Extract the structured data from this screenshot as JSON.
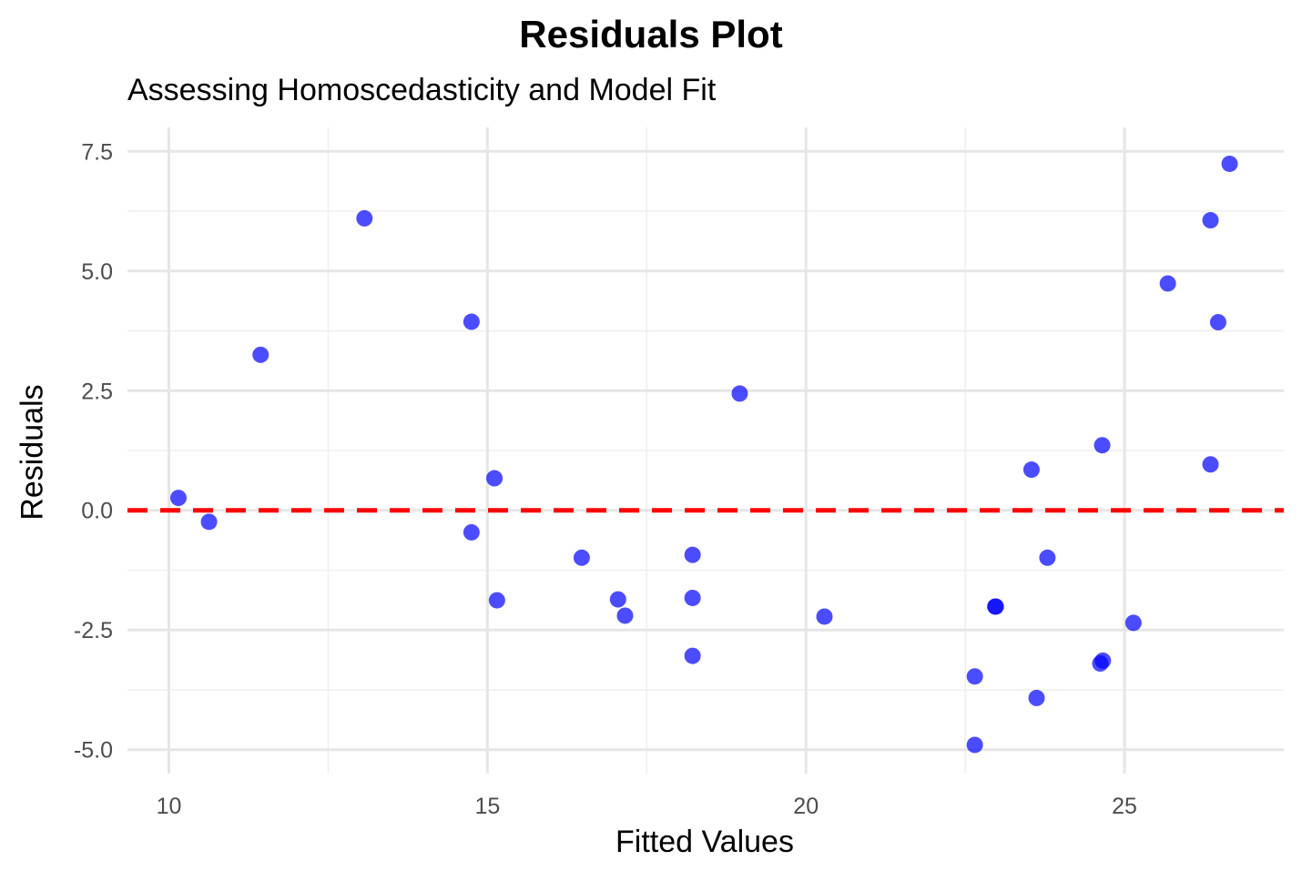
{
  "chart_data": {
    "type": "scatter",
    "title": "Residuals Plot",
    "subtitle": "Assessing Homoscedasticity and Model Fit",
    "xlabel": "Fitted Values",
    "ylabel": "Residuals",
    "xlim": [
      9.35,
      27.5
    ],
    "ylim": [
      -5.5,
      8.0
    ],
    "x_ticks": [
      10,
      15,
      20,
      25
    ],
    "x_tick_labels": [
      "10",
      "15",
      "20",
      "25"
    ],
    "y_ticks": [
      -5.0,
      -2.5,
      0.0,
      2.5,
      5.0,
      7.5
    ],
    "y_tick_labels": [
      "-5.0",
      "-2.5",
      "0.0",
      "2.5",
      "5.0",
      "7.5"
    ],
    "grid": true,
    "reference_line": {
      "y": 0,
      "style": "dashed",
      "color": "#ff0000"
    },
    "point_color": "#0000ff",
    "points": [
      {
        "x": 10.15,
        "y": 0.26
      },
      {
        "x": 10.63,
        "y": -0.24
      },
      {
        "x": 11.44,
        "y": 3.25
      },
      {
        "x": 13.07,
        "y": 6.1
      },
      {
        "x": 14.75,
        "y": 3.94
      },
      {
        "x": 14.75,
        "y": -0.46
      },
      {
        "x": 15.11,
        "y": 0.67
      },
      {
        "x": 15.15,
        "y": -1.88
      },
      {
        "x": 16.48,
        "y": -0.99
      },
      {
        "x": 17.05,
        "y": -1.86
      },
      {
        "x": 17.16,
        "y": -2.2
      },
      {
        "x": 18.22,
        "y": -0.93
      },
      {
        "x": 18.22,
        "y": -1.83
      },
      {
        "x": 18.22,
        "y": -3.04
      },
      {
        "x": 18.96,
        "y": 2.44
      },
      {
        "x": 20.29,
        "y": -2.22
      },
      {
        "x": 22.65,
        "y": -3.47
      },
      {
        "x": 22.65,
        "y": -4.9
      },
      {
        "x": 22.97,
        "y": -2.01
      },
      {
        "x": 22.98,
        "y": -2.01
      },
      {
        "x": 23.54,
        "y": 0.85
      },
      {
        "x": 23.62,
        "y": -3.92
      },
      {
        "x": 23.79,
        "y": -0.99
      },
      {
        "x": 24.62,
        "y": -3.2
      },
      {
        "x": 24.66,
        "y": -3.14
      },
      {
        "x": 24.65,
        "y": 1.36
      },
      {
        "x": 25.14,
        "y": -2.35
      },
      {
        "x": 25.68,
        "y": 4.74
      },
      {
        "x": 26.35,
        "y": 6.06
      },
      {
        "x": 26.35,
        "y": 0.96
      },
      {
        "x": 26.47,
        "y": 3.93
      },
      {
        "x": 26.65,
        "y": 7.24
      }
    ]
  }
}
